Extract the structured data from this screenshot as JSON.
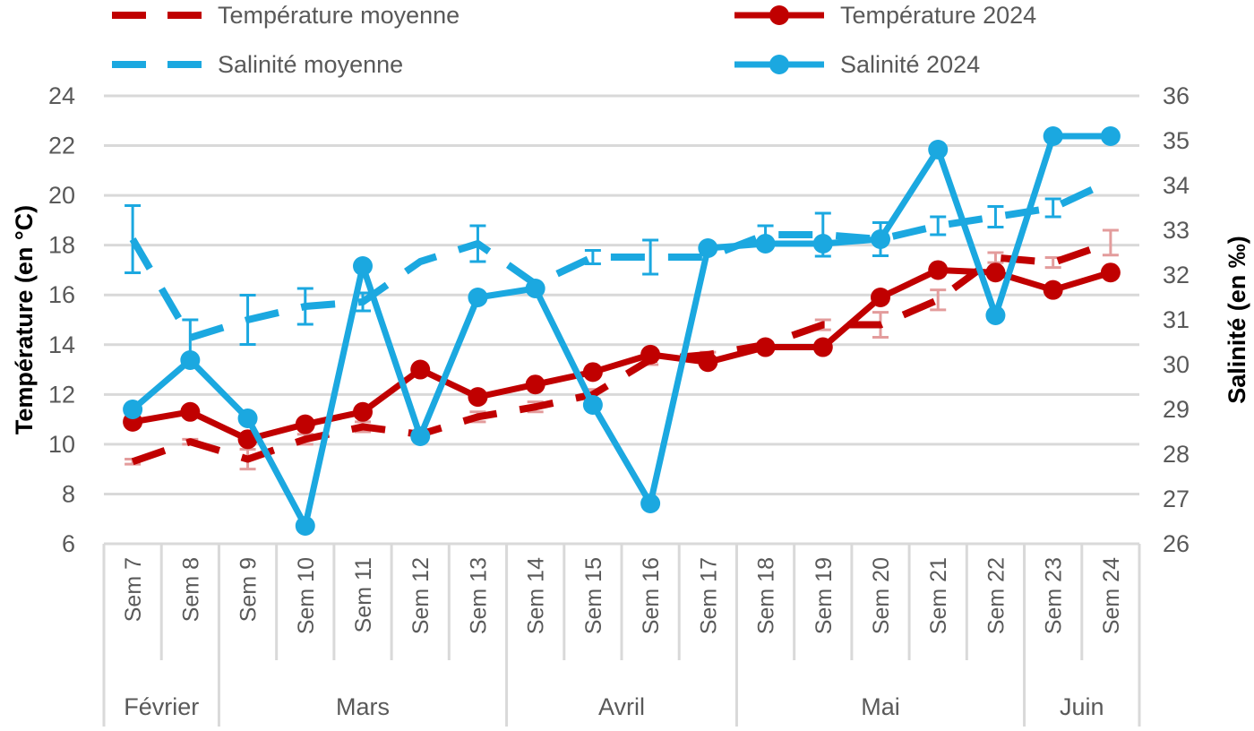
{
  "chart_data": {
    "type": "line",
    "categories": [
      "Sem 7",
      "Sem 8",
      "Sem 9",
      "Sem 10",
      "Sem 11",
      "Sem 12",
      "Sem 13",
      "Sem 14",
      "Sem 15",
      "Sem 16",
      "Sem 17",
      "Sem 18",
      "Sem 19",
      "Sem 20",
      "Sem 21",
      "Sem 22",
      "Sem 23",
      "Sem 24"
    ],
    "month_groups": [
      {
        "label": "Février",
        "span": 2
      },
      {
        "label": "Mars",
        "span": 5
      },
      {
        "label": "Avril",
        "span": 4
      },
      {
        "label": "Mai",
        "span": 5
      },
      {
        "label": "Juin",
        "span": 2
      }
    ],
    "y_left": {
      "label": "Température (en °C)",
      "range": [
        6,
        24
      ],
      "ticks": [
        "6",
        "8",
        "10",
        "12",
        "14",
        "16",
        "18",
        "20",
        "22",
        "24"
      ]
    },
    "y_right": {
      "label": "Salinité (en ‰)",
      "range": [
        26,
        36
      ],
      "ticks": [
        "26",
        "27",
        "28",
        "29",
        "30",
        "31",
        "32",
        "33",
        "34",
        "35",
        "36"
      ]
    },
    "grid": true,
    "legend_position": "top",
    "series": [
      {
        "name": "Température moyenne",
        "axis": "left",
        "style": "dashed",
        "color": "#C00000",
        "error_color": "#E39C9C",
        "values": [
          9.3,
          10.1,
          9.4,
          10.2,
          10.7,
          10.4,
          11.1,
          11.5,
          12.0,
          13.4,
          13.6,
          14.0,
          14.8,
          14.8,
          15.8,
          17.5,
          17.3,
          18.1
        ],
        "error": [
          0.1,
          0.1,
          0.4,
          0.2,
          0.2,
          0,
          0.2,
          0.2,
          0.2,
          0.2,
          0.1,
          0.1,
          0.2,
          0.5,
          0.4,
          0.2,
          0.2,
          0.5
        ]
      },
      {
        "name": "Température 2024",
        "axis": "left",
        "style": "solid-marker",
        "color": "#C00000",
        "values": [
          10.9,
          11.3,
          10.2,
          10.8,
          11.3,
          13.0,
          11.9,
          12.4,
          12.9,
          13.6,
          13.3,
          13.9,
          13.9,
          15.9,
          17.0,
          16.9,
          16.2,
          16.9
        ]
      },
      {
        "name": "Salinité moyenne",
        "axis": "right",
        "style": "dashed",
        "color": "#1BA8E0",
        "values": [
          32.8,
          30.6,
          31.0,
          31.3,
          31.4,
          32.3,
          32.7,
          31.8,
          32.4,
          32.4,
          32.4,
          32.9,
          32.9,
          32.8,
          33.1,
          33.3,
          33.5,
          34.1
        ],
        "error": [
          0.75,
          0.4,
          0.55,
          0.4,
          0.2,
          0,
          0.4,
          0,
          0.15,
          0.38,
          0,
          0.2,
          0.48,
          0.37,
          0.2,
          0.23,
          0.2,
          0
        ]
      },
      {
        "name": "Salinité 2024",
        "axis": "right",
        "style": "solid-marker",
        "color": "#1BA8E0",
        "values": [
          29.0,
          30.1,
          28.8,
          26.4,
          32.2,
          28.4,
          31.5,
          31.7,
          29.1,
          26.9,
          32.6,
          32.7,
          32.7,
          32.8,
          34.8,
          31.1,
          35.1,
          35.1
        ]
      }
    ]
  }
}
